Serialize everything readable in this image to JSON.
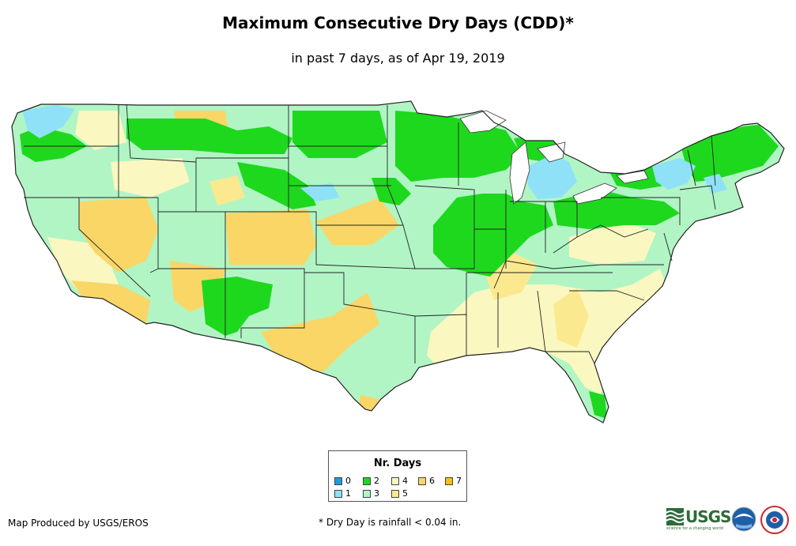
{
  "header": {
    "title": "Maximum Consecutive Dry Days (CDD)*",
    "subtitle": "in past 7 days, as of Apr 19, 2019"
  },
  "legend": {
    "title": "Nr. Days",
    "items": [
      {
        "label": "0",
        "color": "#1a9be0"
      },
      {
        "label": "1",
        "color": "#8fe1f7"
      },
      {
        "label": "2",
        "color": "#1ed81e"
      },
      {
        "label": "3",
        "color": "#b1f5c5"
      },
      {
        "label": "4",
        "color": "#fbf7c0"
      },
      {
        "label": "5",
        "color": "#fbe98f"
      },
      {
        "label": "6",
        "color": "#fad666"
      },
      {
        "label": "7",
        "color": "#f8c112"
      }
    ]
  },
  "footer": {
    "credit": "Map Produced by USGS/EROS",
    "note": "* Dry Day is rainfall < 0.04 in.",
    "usgs_text": "USGS",
    "usgs_tagline": "science for a changing world"
  },
  "logos": {
    "usgs": "usgs-logo",
    "noaa": "noaa-logo",
    "nws": "nws-logo"
  }
}
